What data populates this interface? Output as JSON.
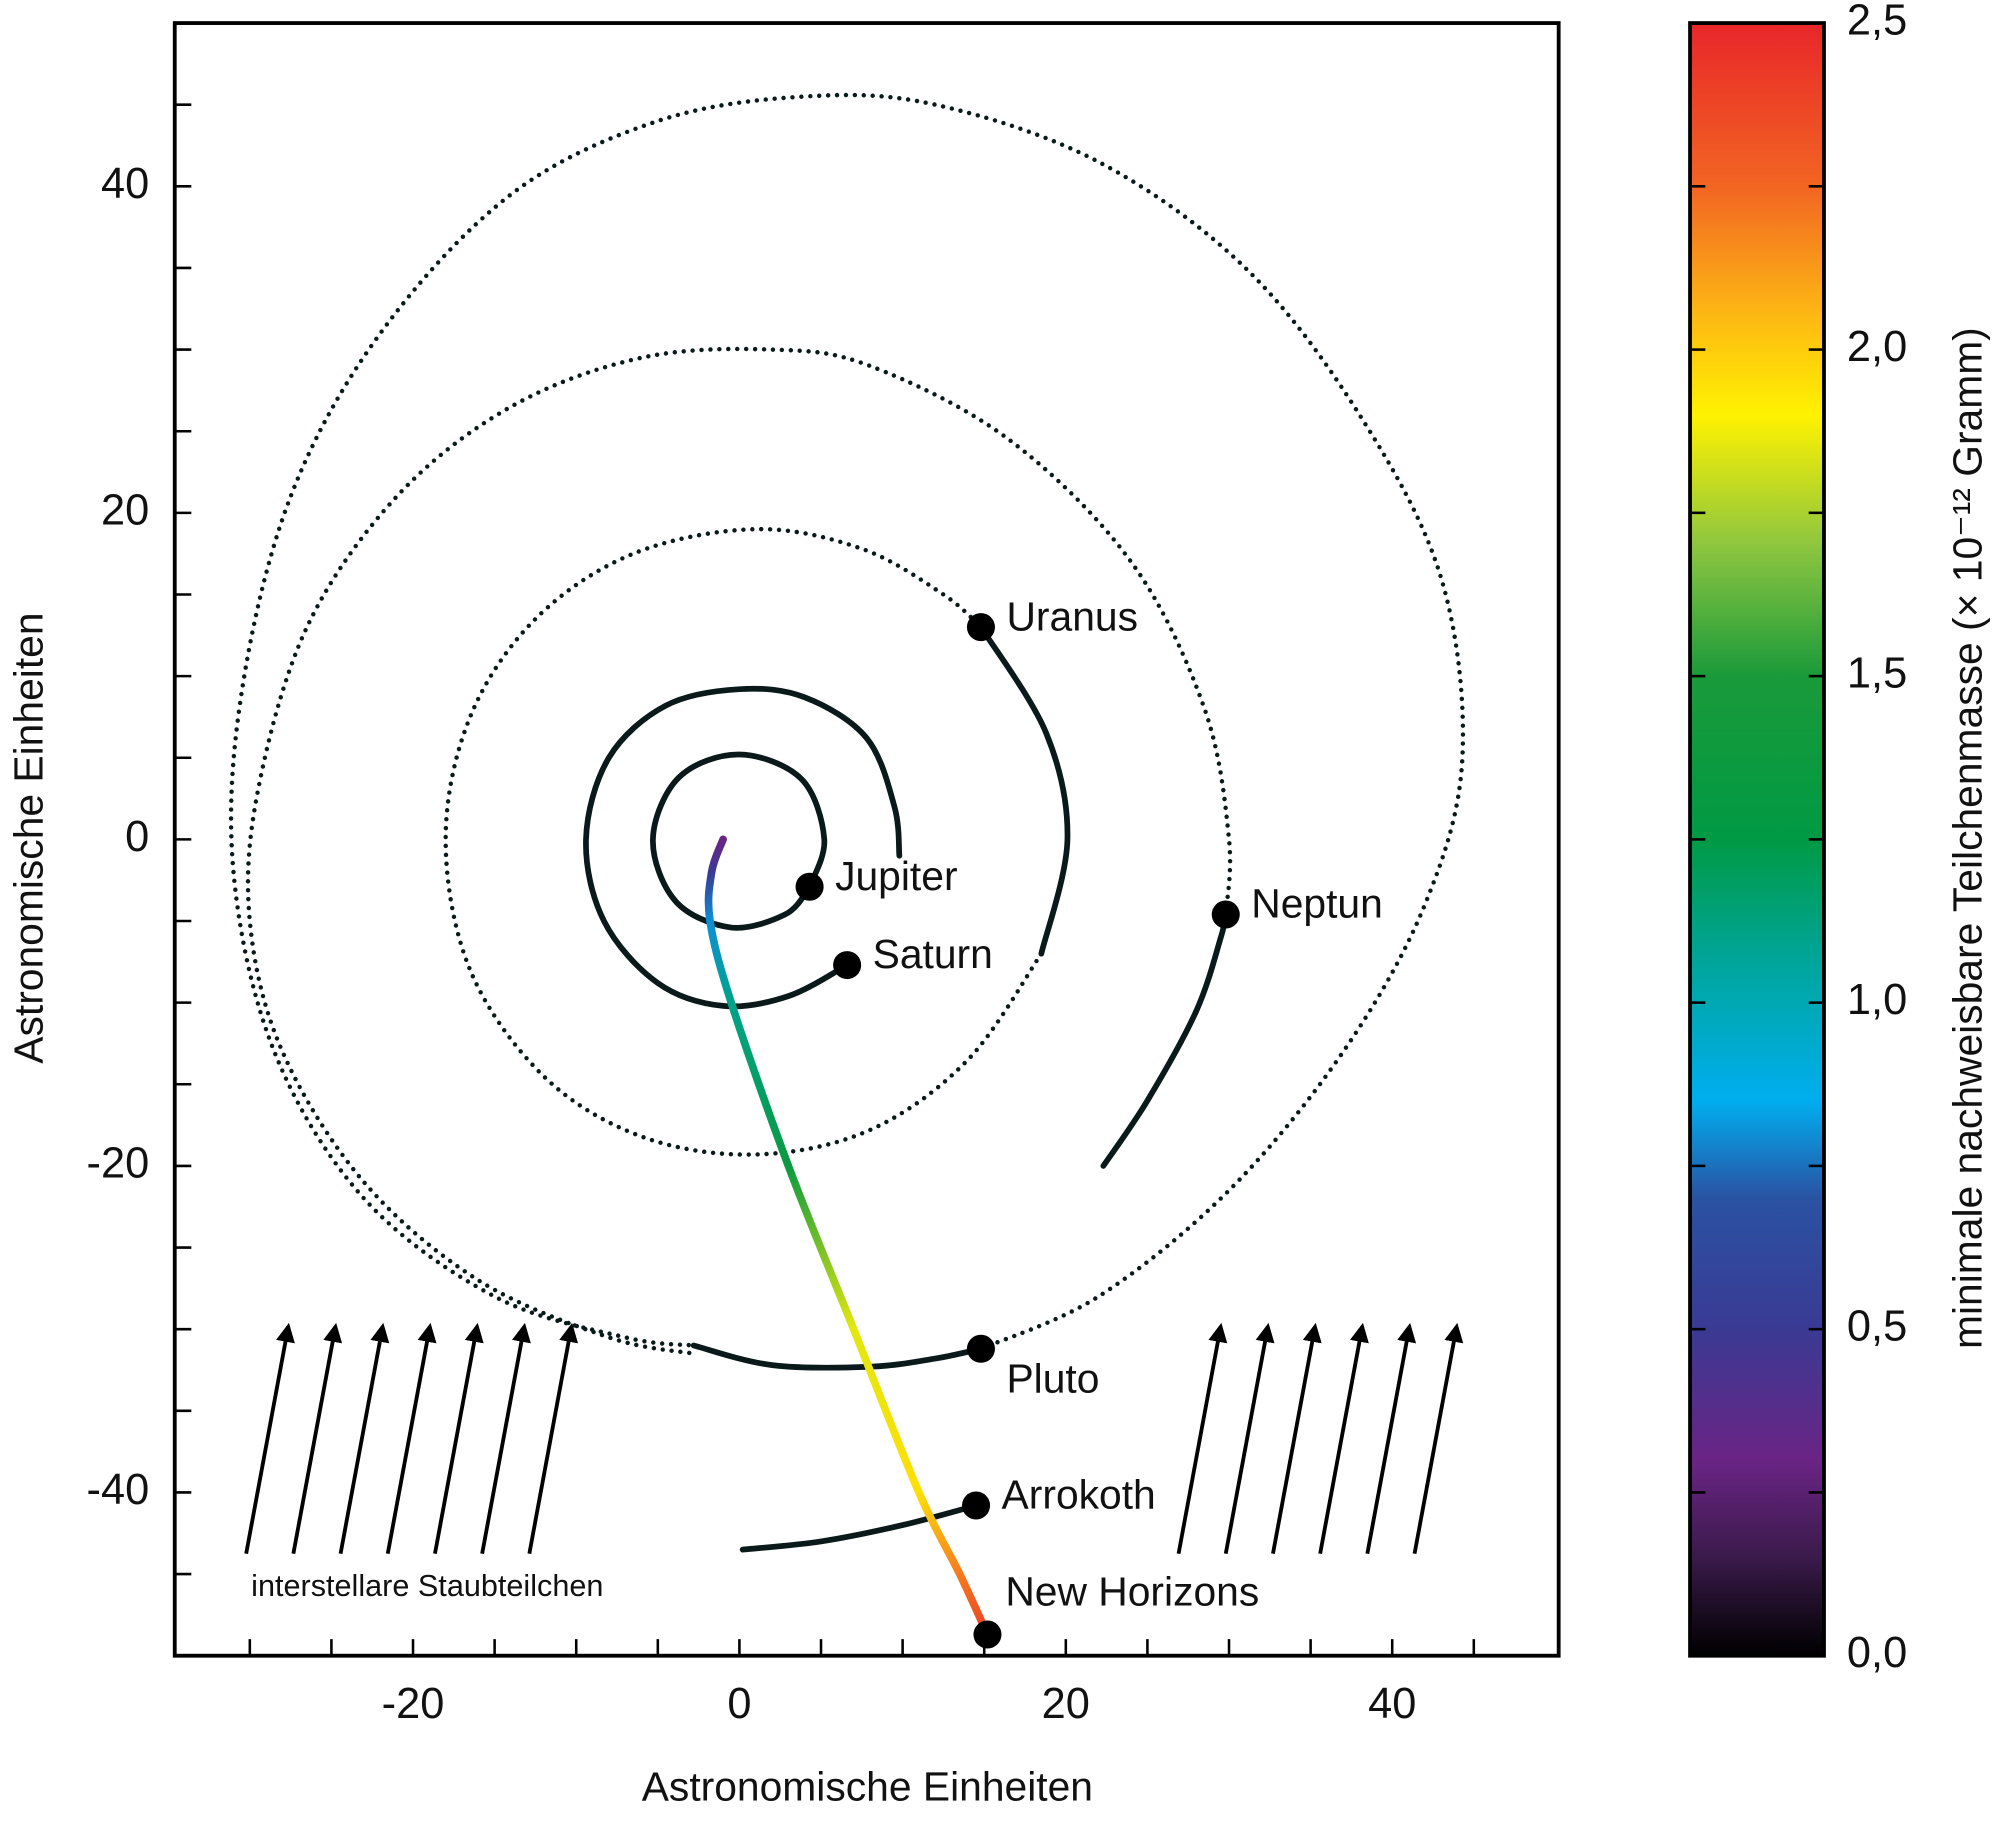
{
  "chart_data": {
    "type": "scatter",
    "x_label": "Astronomische Einheiten",
    "y_label": "Astronomische Einheiten",
    "xlim": [
      -34.6,
      50.2
    ],
    "ylim": [
      -50,
      50
    ],
    "xticks": [
      -20,
      0,
      20,
      40
    ],
    "xminorticks": [
      -30,
      -25,
      -15,
      -10,
      -5,
      5,
      10,
      15,
      25,
      30,
      35,
      45
    ],
    "yticks": [
      -40,
      -20,
      0,
      20,
      40
    ],
    "yminorticks": [
      -45,
      -35,
      -30,
      -25,
      -15,
      -10,
      -5,
      5,
      10,
      15,
      25,
      30,
      35,
      45
    ],
    "tracks": [
      {
        "style": "solid",
        "x": [
          4.3,
          5.2,
          3.8,
          0,
          -3.7,
          -5.3,
          -3.9,
          -0.5,
          2.8,
          4.2
        ],
        "y": [
          -2.9,
          0,
          3.7,
          5.2,
          3.8,
          0,
          -3.8,
          -5.4,
          -4.6,
          -3.1
        ]
      },
      {
        "style": "solid",
        "x": [
          9.8,
          9.5,
          7.8,
          4,
          0,
          -4.5,
          -8,
          -9.4,
          -8.3,
          -5,
          -1,
          3,
          6.6
        ],
        "y": [
          -1,
          2,
          6.2,
          8.7,
          9.2,
          8.2,
          5,
          0,
          -5,
          -8.8,
          -10.2,
          -9.6,
          -7.7
        ]
      },
      {
        "style": "solid",
        "x": [
          14.8,
          18.8,
          20.1,
          18.5
        ],
        "y": [
          13,
          6.5,
          0,
          -7
        ]
      },
      {
        "style": "dotted",
        "x": [
          18.5,
          14,
          8,
          1,
          -6,
          -12,
          -16.5,
          -18,
          -16.5,
          -12.5,
          -6.5,
          1,
          7.5,
          12.5,
          14.8
        ],
        "y": [
          -7,
          -13.5,
          -17.8,
          -19.3,
          -18.2,
          -14.5,
          -8,
          0,
          7.5,
          13.5,
          17.5,
          19,
          17.8,
          15,
          13
        ]
      },
      {
        "style": "solid",
        "x": [
          22.3,
          25,
          28,
          29.5,
          29.8
        ],
        "y": [
          -20,
          -16,
          -10.5,
          -6,
          -4.6
        ]
      },
      {
        "style": "dotted",
        "x": [
          29.8,
          30,
          28.5,
          24,
          16.5,
          8,
          2,
          -6,
          -14,
          -21,
          -26.5,
          -29.5,
          -30,
          -28,
          -23,
          -16,
          -8,
          -2.8
        ],
        "y": [
          -4.6,
          0,
          8,
          17,
          24.5,
          29,
          30,
          29.5,
          26.5,
          21,
          13,
          3,
          -5,
          -13,
          -21,
          -27,
          -30.5,
          -31.5
        ]
      },
      {
        "style": "solid",
        "x": [
          -2.8,
          2,
          8,
          12,
          14.8
        ],
        "y": [
          -31,
          -32.2,
          -32.3,
          -31.8,
          -31.2
        ]
      },
      {
        "style": "dotted",
        "x": [
          14.8,
          22,
          30,
          37,
          42,
          44.3,
          43,
          38,
          31,
          22,
          12,
          4,
          -5,
          -14,
          -22,
          -27.5,
          -30.5,
          -31,
          -28.5,
          -23,
          -15,
          -7,
          -2.8
        ],
        "y": [
          -31.2,
          -28,
          -21.5,
          -13,
          -4,
          5,
          16,
          26,
          35,
          41.5,
          45,
          45.5,
          44,
          39.5,
          31,
          21,
          9,
          -2,
          -13,
          -22,
          -28,
          -30.5,
          -31
        ]
      },
      {
        "style": "solid",
        "x": [
          0.2,
          5,
          10,
          14.5
        ],
        "y": [
          -43.5,
          -43,
          -42,
          -40.8
        ]
      }
    ],
    "trajectory": {
      "x": [
        -1,
        -1.7,
        -1.8,
        -0.5,
        3,
        7,
        11,
        13.5,
        15.2
      ],
      "y": [
        0,
        -2,
        -5,
        -10,
        -20,
        -30,
        -40,
        -45,
        -48.7
      ],
      "mass": [
        0.3,
        0.5,
        0.8,
        1.1,
        1.35,
        1.85,
        1.95,
        2.2,
        2.4
      ]
    },
    "points": [
      {
        "name": "Jupiter",
        "x": 4.3,
        "y": -2.9,
        "label_position": "right"
      },
      {
        "name": "Saturn",
        "x": 6.6,
        "y": -7.7,
        "label_position": "right"
      },
      {
        "name": "Uranus",
        "x": 14.8,
        "y": 13,
        "label_position": "right"
      },
      {
        "name": "Neptun",
        "x": 29.8,
        "y": -4.6,
        "label_position": "right"
      },
      {
        "name": "Pluto",
        "x": 14.8,
        "y": -31.2,
        "label_position": "below"
      },
      {
        "name": "Arrokoth",
        "x": 14.5,
        "y": -40.8,
        "label_position": "right"
      },
      {
        "name": "New Horizons",
        "x": 15.2,
        "y": -48.7,
        "label_position": "above"
      }
    ],
    "annotation": "interstellare Staubteilchen",
    "colorbar": {
      "label": "minimale nachweisbare Teilchenmasse (× 10⁻¹² Gramm)",
      "lim": [
        0,
        2.5
      ],
      "ticks": [
        {
          "value": 0,
          "label": "0,0"
        },
        {
          "value": 0.5,
          "label": "0,5"
        },
        {
          "value": 1,
          "label": "1,0"
        },
        {
          "value": 1.5,
          "label": "1,5"
        },
        {
          "value": 2,
          "label": "2,0"
        },
        {
          "value": 2.5,
          "label": "2,5"
        }
      ],
      "minorticks": [
        0.25,
        0.75,
        1.25,
        1.75,
        2.25
      ],
      "colormap": [
        {
          "value": 0,
          "color": "#000000"
        },
        {
          "value": 0.15,
          "color": "#3a1a4a"
        },
        {
          "value": 0.3,
          "color": "#6a2485"
        },
        {
          "value": 0.5,
          "color": "#3a3a93"
        },
        {
          "value": 0.7,
          "color": "#2a52a3"
        },
        {
          "value": 0.85,
          "color": "#00aeef"
        },
        {
          "value": 1.05,
          "color": "#00a6a0"
        },
        {
          "value": 1.25,
          "color": "#009a44"
        },
        {
          "value": 1.5,
          "color": "#1a9a3a"
        },
        {
          "value": 1.7,
          "color": "#8dc63f"
        },
        {
          "value": 1.9,
          "color": "#fff200"
        },
        {
          "value": 2.05,
          "color": "#fdb913"
        },
        {
          "value": 2.25,
          "color": "#f26522"
        },
        {
          "value": 2.5,
          "color": "#e8262a"
        }
      ]
    }
  }
}
